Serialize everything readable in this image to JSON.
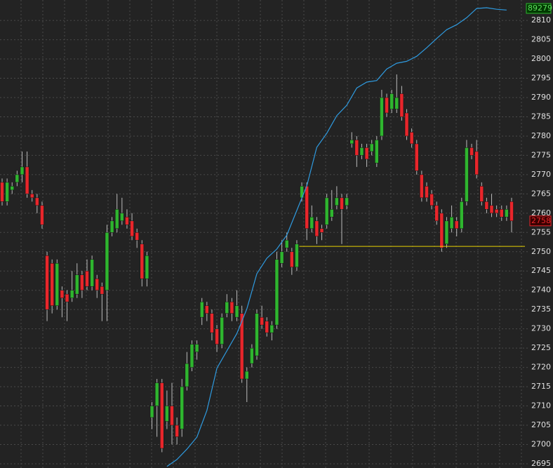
{
  "chart_data": {
    "type": "candlestick",
    "ylim": [
      2693.9,
      2815.3
    ],
    "yticks": [
      2695,
      2700,
      2705,
      2710,
      2715,
      2720,
      2725,
      2730,
      2735,
      2740,
      2745,
      2750,
      2755,
      2760,
      2765,
      2770,
      2775,
      2780,
      2785,
      2790,
      2795,
      2800,
      2805,
      2810
    ],
    "grid": true,
    "up_color": "#2fb52f",
    "down_color": "#e8262b",
    "open": [
      2768,
      2763,
      2766,
      2768,
      2770,
      2772,
      2765,
      2764,
      2762,
      2749,
      2747,
      2736,
      2740,
      2739,
      2738,
      2739,
      2744,
      2745,
      2741,
      2743,
      2741,
      2740,
      2755,
      2756,
      2758,
      2759,
      2758,
      2755,
      2752,
      2743,
      2707,
      2710,
      2716,
      2706,
      2710,
      2705,
      2704,
      2715,
      2720,
      2724,
      2733,
      2736,
      2734,
      2730,
      2726,
      2734,
      2737,
      2733,
      2734,
      2717,
      2721,
      2723,
      2733,
      2732,
      2729,
      2731,
      2747,
      2751,
      2750,
      2746,
      2764,
      2767,
      2756,
      2758,
      2756,
      2757,
      2759,
      2762,
      2764,
      2762,
      2778,
      2779,
      2775,
      2777,
      2776,
      2773,
      2780,
      2790,
      2787,
      2787,
      2791,
      2786,
      2781,
      2778,
      2770,
      2767,
      2765,
      2762,
      2760,
      2752,
      2756,
      2758,
      2756,
      2763,
      2777,
      2776,
      2767,
      2763,
      2762,
      2761,
      2761,
      2759,
      2763
    ],
    "high": [
      2769,
      2769,
      2768,
      2771,
      2776,
      2776,
      2766,
      2765,
      2763,
      2750,
      2748,
      2748,
      2741,
      2740,
      2745,
      2747,
      2745,
      2748,
      2749,
      2744,
      2742,
      2757,
      2759,
      2765,
      2764,
      2761,
      2760,
      2756,
      2753,
      2750,
      2711,
      2717,
      2717,
      2714,
      2716,
      2707,
      2717,
      2724,
      2727,
      2727,
      2738,
      2737,
      2735,
      2731,
      2734,
      2739,
      2738,
      2740,
      2736,
      2720,
      2726,
      2735,
      2736,
      2733,
      2732,
      2750,
      2753,
      2755,
      2751,
      2753,
      2768,
      2768,
      2762,
      2759,
      2757,
      2765,
      2766,
      2767,
      2765,
      2765,
      2781,
      2780,
      2778,
      2778,
      2779,
      2780,
      2792,
      2791,
      2792,
      2796,
      2793,
      2787,
      2782,
      2779,
      2771,
      2768,
      2766,
      2763,
      2761,
      2759,
      2762,
      2759,
      2764,
      2779,
      2778,
      2779,
      2768,
      2764,
      2765,
      2762,
      2762,
      2762,
      2764
    ],
    "low": [
      2762,
      2762,
      2765,
      2767,
      2768,
      2764,
      2763,
      2760,
      2756,
      2732,
      2734,
      2735,
      2733,
      2732,
      2737,
      2738,
      2738,
      2740,
      2740,
      2738,
      2732,
      2732,
      2754,
      2755,
      2757,
      2756,
      2753,
      2751,
      2741,
      2741,
      2704,
      2702,
      2698,
      2704,
      2700,
      2700,
      2702,
      2714,
      2719,
      2722,
      2731,
      2732,
      2727,
      2724,
      2725,
      2733,
      2732,
      2732,
      2716,
      2711,
      2720,
      2722,
      2730,
      2728,
      2727,
      2730,
      2746,
      2750,
      2744,
      2745,
      2763,
      2753,
      2755,
      2752,
      2753,
      2756,
      2758,
      2761,
      2752,
      2761,
      2777,
      2772,
      2774,
      2772,
      2775,
      2772,
      2779,
      2785,
      2786,
      2786,
      2784,
      2779,
      2777,
      2770,
      2763,
      2763,
      2761,
      2757,
      2750,
      2751,
      2755,
      2754,
      2755,
      2762,
      2774,
      2769,
      2762,
      2760,
      2759,
      2759,
      2758,
      2758,
      2755
    ],
    "close": [
      2763,
      2768,
      2767,
      2770,
      2772,
      2765,
      2764,
      2762,
      2757,
      2735,
      2736,
      2747,
      2738,
      2737,
      2740,
      2744,
      2740,
      2741,
      2748,
      2740,
      2739,
      2755,
      2758,
      2761,
      2760,
      2757,
      2754,
      2753,
      2743,
      2749,
      2710,
      2716,
      2699,
      2710,
      2705,
      2702,
      2715,
      2721,
      2726,
      2726,
      2737,
      2734,
      2729,
      2726,
      2733,
      2737,
      2734,
      2736,
      2717,
      2719,
      2725,
      2734,
      2731,
      2729,
      2731,
      2748,
      2750,
      2753,
      2746,
      2752,
      2767,
      2756,
      2759,
      2754,
      2755,
      2764,
      2761,
      2764,
      2761,
      2764,
      2779,
      2775,
      2777,
      2774,
      2778,
      2779,
      2790,
      2786,
      2791,
      2790,
      2785,
      2780,
      2778,
      2771,
      2764,
      2764,
      2762,
      2758,
      2751,
      2758,
      2759,
      2756,
      2763,
      2777,
      2775,
      2770,
      2763,
      2761,
      2760,
      2760,
      2759,
      2761,
      2758
    ],
    "line": {
      "color": "#2f9be0",
      "x": [
        33,
        35,
        37,
        39,
        41,
        43,
        45,
        47,
        49,
        51,
        53,
        55,
        57,
        59,
        61,
        63,
        65,
        67,
        69,
        71,
        73,
        75,
        77,
        79,
        81,
        83,
        85,
        87,
        89,
        91,
        93,
        95,
        97,
        99,
        101
      ],
      "values": [
        2694.3,
        2696.1,
        2698.8,
        2701.9,
        2708.8,
        2719.8,
        2724.3,
        2728.8,
        2735.2,
        2744.3,
        2748.3,
        2750.7,
        2754.3,
        2760.7,
        2767.1,
        2777.1,
        2780.7,
        2785.3,
        2788.0,
        2792.5,
        2794.0,
        2794.4,
        2797.4,
        2798.9,
        2799.4,
        2800.7,
        2802.9,
        2805.3,
        2807.6,
        2808.9,
        2810.7,
        2813.1,
        2813.3,
        2812.9,
        2812.7
      ]
    },
    "hline": {
      "value": 2751.4,
      "color": "#e6d200",
      "x_start": 60
    },
    "last_price": 2758,
    "line_last_label": 89279
  }
}
